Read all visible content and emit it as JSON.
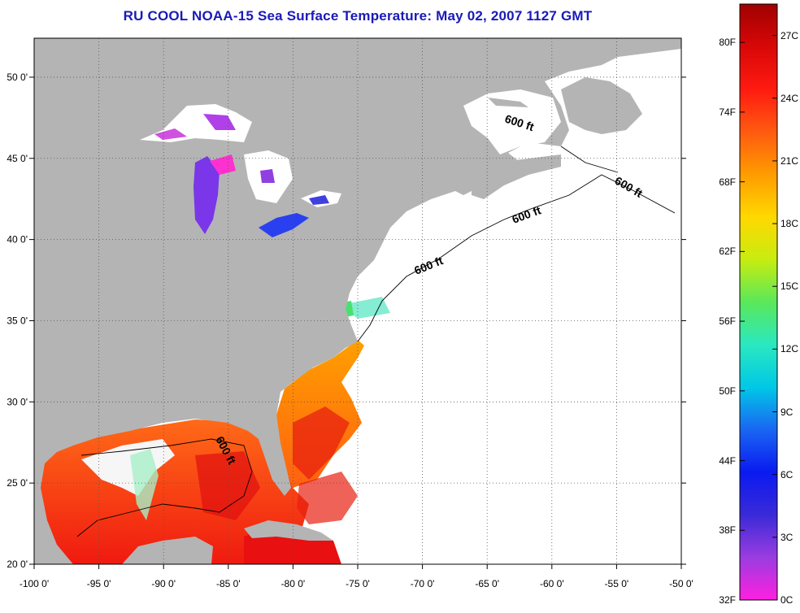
{
  "title": "RU COOL  NOAA-15  Sea Surface Temperature:  May 02, 2007 1127 GMT",
  "map": {
    "lon_labels": [
      "-100 0'",
      "-95 0'",
      "-90 0'",
      "-85 0'",
      "-80 0'",
      "-75 0'",
      "-70 0'",
      "-65 0'",
      "-60 0'",
      "-55 0'",
      "-50 0'"
    ],
    "lon_values": [
      -100,
      -95,
      -90,
      -85,
      -80,
      -75,
      -70,
      -65,
      -60,
      -55,
      -50
    ],
    "lat_labels": [
      "50 0'",
      "45 0'",
      "40 0'",
      "35 0'",
      "30 0'",
      "25 0'",
      "20 0'"
    ],
    "lat_values": [
      50,
      45,
      40,
      35,
      30,
      25,
      20
    ],
    "lon_range": [
      -100,
      -50
    ],
    "lat_range": [
      20,
      52.4
    ],
    "depth_contour_label": "600 ft",
    "land_color": "#b4b4b4",
    "no_data_color": "#ffffff"
  },
  "colorbar": {
    "fahrenheit_labels": [
      "80F",
      "74F",
      "68F",
      "62F",
      "56F",
      "50F",
      "44F",
      "38F",
      "32F"
    ],
    "fahrenheit_values": [
      80,
      74,
      68,
      62,
      56,
      50,
      44,
      38,
      32
    ],
    "celsius_labels": [
      "27C",
      "24C",
      "21C",
      "18C",
      "15C",
      "12C",
      "9C",
      "6C",
      "3C",
      "0C"
    ],
    "celsius_values": [
      27,
      24,
      21,
      18,
      15,
      12,
      9,
      6,
      3,
      0
    ],
    "range_celsius": [
      0,
      28.5
    ],
    "gradient_colors": [
      "#ff20e0",
      "#9a3ce0",
      "#3a2ad8",
      "#0a1af0",
      "#1a66f2",
      "#00c8e6",
      "#2ae8c0",
      "#5ae85a",
      "#c8ec10",
      "#ffd800",
      "#ff9c00",
      "#ff5a10",
      "#ff1a10",
      "#d80808",
      "#a00000"
    ]
  }
}
